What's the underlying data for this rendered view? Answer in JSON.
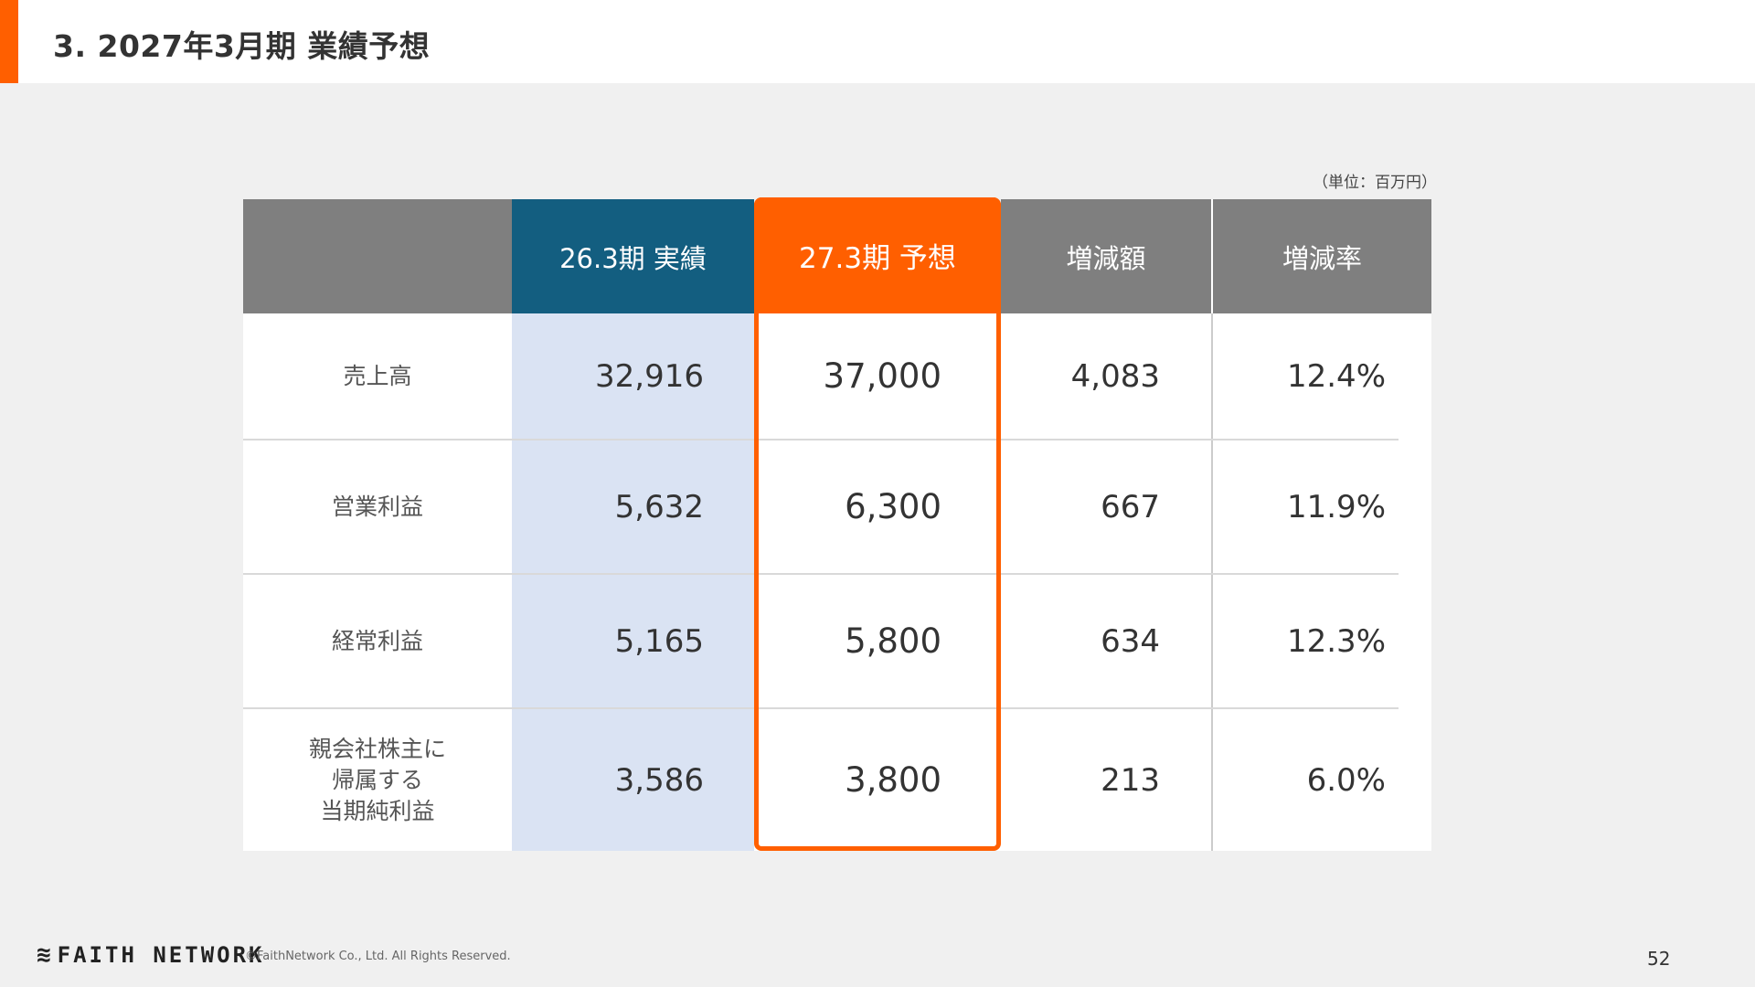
{
  "header": {
    "title": "3. 2027年3月期 業績予想"
  },
  "table": {
    "unit_note": "（単位：百万円）",
    "columns": {
      "actual": "26.3期 実績",
      "forecast": "27.3期 予想",
      "diff": "増減額",
      "rate": "増減率"
    },
    "rows": [
      {
        "label": "売上高",
        "actual": "32,916",
        "forecast": "37,000",
        "diff": "4,083",
        "rate": "12.4%"
      },
      {
        "label": "営業利益",
        "actual": "5,632",
        "forecast": "6,300",
        "diff": "667",
        "rate": "11.9%"
      },
      {
        "label": "経常利益",
        "actual": "5,165",
        "forecast": "5,800",
        "diff": "634",
        "rate": "12.3%"
      },
      {
        "label_lines": [
          "親会社株主に",
          "帰属する",
          "当期純利益"
        ],
        "actual": "3,586",
        "forecast": "3,800",
        "diff": "213",
        "rate": "6.0%"
      }
    ]
  },
  "footer": {
    "logo_text": "FAITH NETWORK",
    "copyright": "©FaithNetwork Co., Ltd. All Rights Reserved.",
    "page_number": "52"
  },
  "colors": {
    "accent": "#ff5f00",
    "actual_header": "#135e80",
    "actual_column": "#dae3f3",
    "gray_header": "#7f7f7f"
  },
  "icons": {
    "logo_mark": "faith-network-logo-icon"
  }
}
